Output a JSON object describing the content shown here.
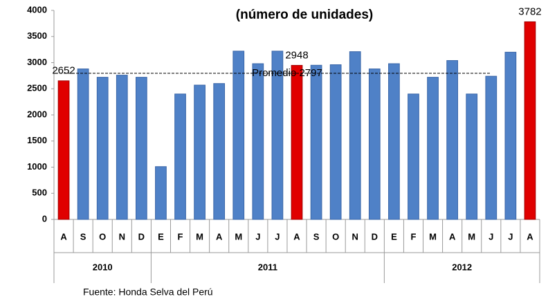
{
  "chart_data": {
    "type": "bar",
    "title": "(número de unidades)",
    "categories": [
      "A",
      "S",
      "O",
      "N",
      "D",
      "E",
      "F",
      "M",
      "A",
      "M",
      "J",
      "J",
      "A",
      "S",
      "O",
      "N",
      "D",
      "E",
      "F",
      "M",
      "A",
      "M",
      "J",
      "J",
      "A"
    ],
    "series": [
      {
        "values": [
          2652,
          2880,
          2720,
          2760,
          2720,
          1010,
          2400,
          2570,
          2600,
          3220,
          2980,
          3220,
          2948,
          2950,
          2960,
          3210,
          2880,
          2980,
          2400,
          2720,
          3040,
          2400,
          2740,
          3200,
          3782
        ],
        "colors": [
          "#e00000",
          "#4f81c7",
          "#4f81c7",
          "#4f81c7",
          "#4f81c7",
          "#4f81c7",
          "#4f81c7",
          "#4f81c7",
          "#4f81c7",
          "#4f81c7",
          "#4f81c7",
          "#4f81c7",
          "#e00000",
          "#4f81c7",
          "#4f81c7",
          "#4f81c7",
          "#4f81c7",
          "#4f81c7",
          "#4f81c7",
          "#4f81c7",
          "#4f81c7",
          "#4f81c7",
          "#4f81c7",
          "#4f81c7",
          "#e00000"
        ]
      }
    ],
    "data_labels": [
      0,
      12,
      24
    ],
    "average": {
      "value": 2797,
      "label": "Promedio 2797"
    },
    "groups": [
      {
        "label": "2010",
        "count": 5
      },
      {
        "label": "2011",
        "count": 12
      },
      {
        "label": "2012",
        "count": 8
      }
    ],
    "ylim": [
      0,
      4000
    ],
    "yticks": [
      0,
      500,
      1000,
      1500,
      2000,
      2500,
      3000,
      3500,
      4000
    ],
    "source": "Fuente: Honda Selva del Perú"
  }
}
